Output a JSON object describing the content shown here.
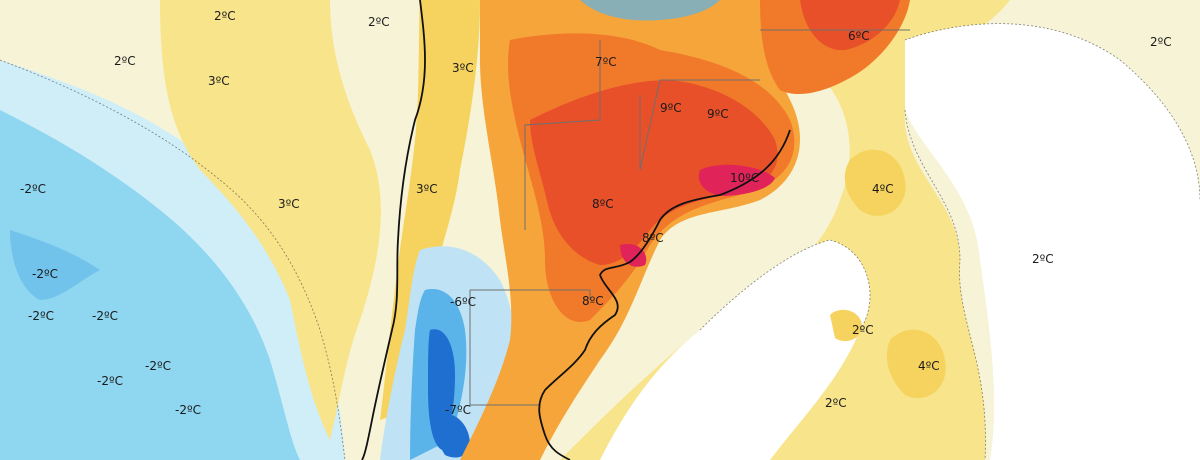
{
  "map": {
    "colors": {
      "ocean_deep": "#8fd6f0",
      "ocean_light": "#cfeef8",
      "pale": "#f7f3d6",
      "yellow": "#f8e48a",
      "yellow_strong": "#f6d35e",
      "orange": "#f5a53a",
      "orange_red": "#f07a2a",
      "red": "#e8502a",
      "magenta": "#e0245a",
      "cold_light": "#bfe3f5",
      "cold": "#5ab4ea",
      "cold_deep": "#1f6fd1",
      "border": "#6f6f6f",
      "coast": "#111111"
    },
    "labels": [
      "2ºC",
      "2ºC",
      "2ºC",
      "3ºC",
      "3ºC",
      "3ºC",
      "7ºC",
      "6ºC",
      "2ºC",
      "-2ºC",
      "9ºC",
      "9ºC",
      "10ºC",
      "3ºC",
      "8ºC",
      "8ºC",
      "4ºC",
      "-2ºC",
      "2ºC",
      "-2ºC",
      "-2ºC",
      "-6ºC",
      "8ºC",
      "2ºC",
      "-2ºC",
      "4ºC",
      "-2ºC",
      "2ºC",
      "-2ºC",
      "-7ºC"
    ]
  }
}
